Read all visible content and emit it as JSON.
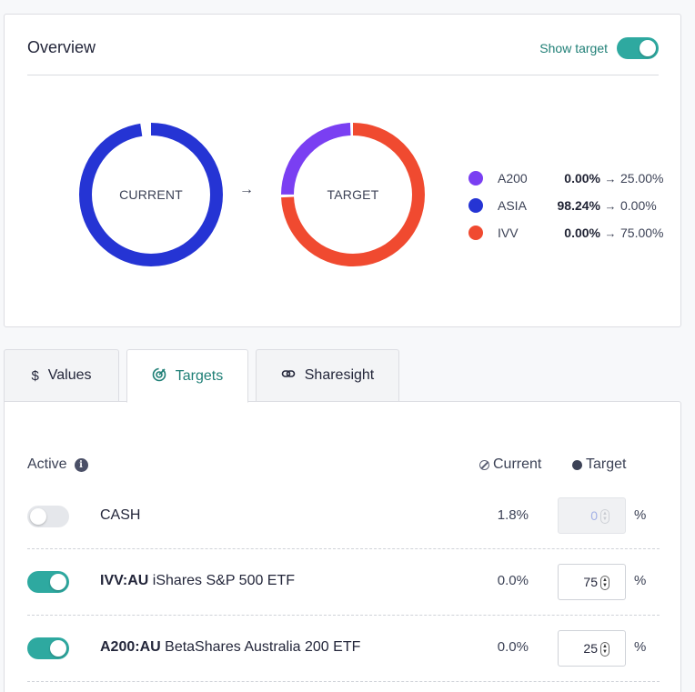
{
  "overview": {
    "title": "Overview",
    "show_target_label": "Show target",
    "show_target_on": true,
    "current_label": "CURRENT",
    "target_label": "TARGET",
    "colors": {
      "A200": "#7a3ff2",
      "ASIA": "#2534d4",
      "IVV": "#f04a30"
    },
    "current_alloc": [
      {
        "name": "ASIA",
        "pct": 98.24
      }
    ],
    "target_alloc": [
      {
        "name": "IVV",
        "pct": 75
      },
      {
        "name": "A200",
        "pct": 25
      }
    ],
    "legend": [
      {
        "name": "A200",
        "current": "0.00%",
        "target": "25.00%",
        "color": "#7a3ff2"
      },
      {
        "name": "ASIA",
        "current": "98.24%",
        "target": "0.00%",
        "color": "#2534d4"
      },
      {
        "name": "IVV",
        "current": "0.00%",
        "target": "75.00%",
        "color": "#f04a30"
      }
    ]
  },
  "tabs": [
    {
      "label": "Values",
      "icon": "dollar-icon"
    },
    {
      "label": "Targets",
      "icon": "target-icon"
    },
    {
      "label": "Sharesight",
      "icon": "link-icon"
    }
  ],
  "table": {
    "active_header": "Active",
    "current_header": "Current",
    "target_header": "Target",
    "rows": [
      {
        "ticker": "",
        "name": "CASH",
        "active": false,
        "current": "1.8%",
        "target": "0",
        "target_disabled": true
      },
      {
        "ticker": "IVV:AU",
        "name": "iShares S&P 500 ETF",
        "active": true,
        "current": "0.0%",
        "target": "75",
        "target_disabled": false
      },
      {
        "ticker": "A200:AU",
        "name": "BetaShares Australia 200 ETF",
        "active": true,
        "current": "0.0%",
        "target": "25",
        "target_disabled": false
      }
    ],
    "pct_symbol": "%"
  }
}
